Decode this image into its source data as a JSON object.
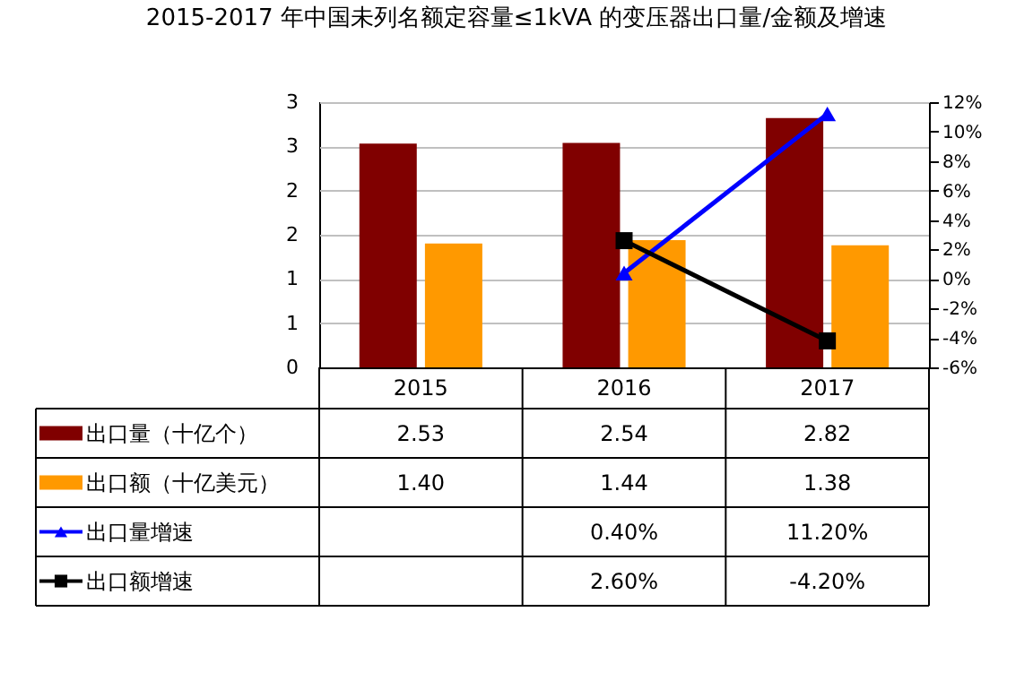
{
  "chart_data": {
    "type": "bar",
    "title": "2015-2017 年中国未列名额定容量≤1kVA 的变压器出口量/金额及增速",
    "categories": [
      "2015",
      "2016",
      "2017"
    ],
    "series": [
      {
        "name": "出口量（十亿个）",
        "color": "#800000",
        "values": [
          2.53,
          2.54,
          2.82
        ],
        "value_labels": [
          "2.53",
          "2.54",
          "2.82"
        ]
      },
      {
        "name": "出口额（十亿美元）",
        "color": "#ff9900",
        "values": [
          1.4,
          1.44,
          1.38
        ],
        "value_labels": [
          "1.40",
          "1.44",
          "1.38"
        ]
      },
      {
        "name": "出口量增速",
        "type": "line",
        "axis": "y2",
        "marker": "triangle",
        "color": "#0000ff",
        "values": [
          null,
          0.4,
          11.2
        ],
        "value_labels": [
          null,
          "0.40%",
          "11.20%"
        ]
      },
      {
        "name": "出口额增速",
        "type": "line",
        "axis": "y2",
        "marker": "square",
        "color": "#000000",
        "values": [
          null,
          2.6,
          -4.2
        ],
        "value_labels": [
          null,
          "2.60%",
          "-4.20%"
        ]
      }
    ],
    "ylim": [
      0,
      3
    ],
    "yticks": [
      0,
      {
        "value": 0.5,
        "label": "1"
      },
      1,
      {
        "value": 1.5,
        "label": "2"
      },
      2,
      {
        "value": 2.5,
        "label": "3"
      },
      3
    ],
    "y2lim": [
      -6,
      12
    ],
    "y2ticks": [
      {
        "value": -6,
        "label": "-6%"
      },
      {
        "value": -4,
        "label": "-4%"
      },
      {
        "value": -2,
        "label": "-2%"
      },
      {
        "value": 0,
        "label": "0%"
      },
      {
        "value": 2,
        "label": "2%"
      },
      {
        "value": 4,
        "label": "4%"
      },
      {
        "value": 6,
        "label": "6%"
      },
      {
        "value": 8,
        "label": "8%"
      },
      {
        "value": 10,
        "label": "10%"
      },
      {
        "value": 12,
        "label": "12%"
      }
    ],
    "grid": "y",
    "legend": "bottom"
  }
}
